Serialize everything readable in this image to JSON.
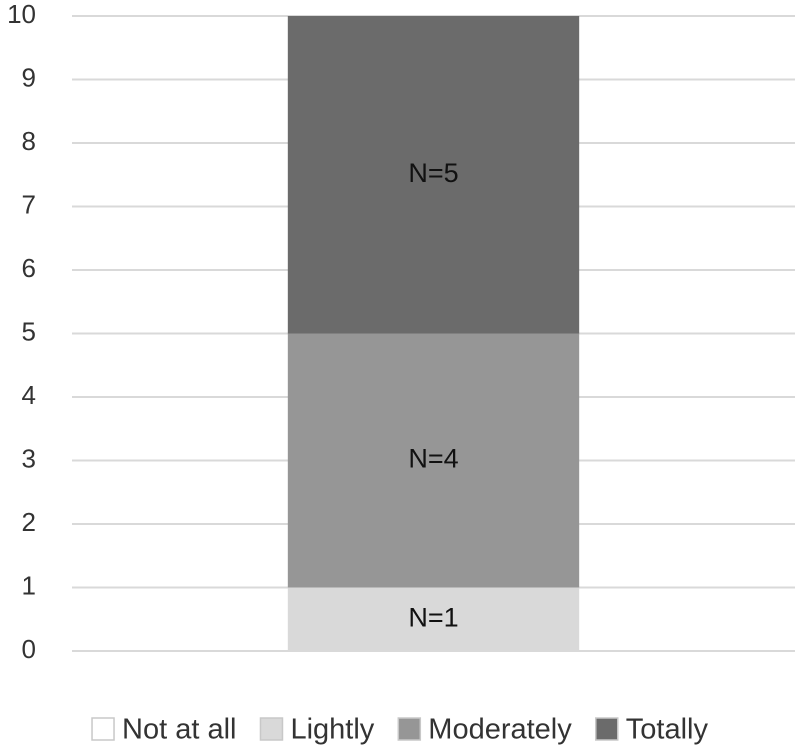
{
  "chart_data": {
    "type": "stacked_bar",
    "categories": [
      null
    ],
    "series": [
      {
        "name": "Not at all",
        "color": "#ffffff",
        "values": [
          0
        ]
      },
      {
        "name": "Lightly",
        "color": "#d9d9d9",
        "values": [
          1
        ],
        "value_labels": [
          "N=1"
        ]
      },
      {
        "name": "Moderately",
        "color": "#969696",
        "values": [
          4
        ],
        "value_labels": [
          "N=4"
        ]
      },
      {
        "name": "Totally",
        "color": "#6b6b6b",
        "values": [
          5
        ],
        "value_labels": [
          "N=5"
        ]
      }
    ],
    "ylim": [
      0,
      10
    ],
    "yticks": [
      0,
      1,
      2,
      3,
      4,
      5,
      6,
      7,
      8,
      9,
      10
    ],
    "grid": true,
    "legend": "bottom"
  }
}
